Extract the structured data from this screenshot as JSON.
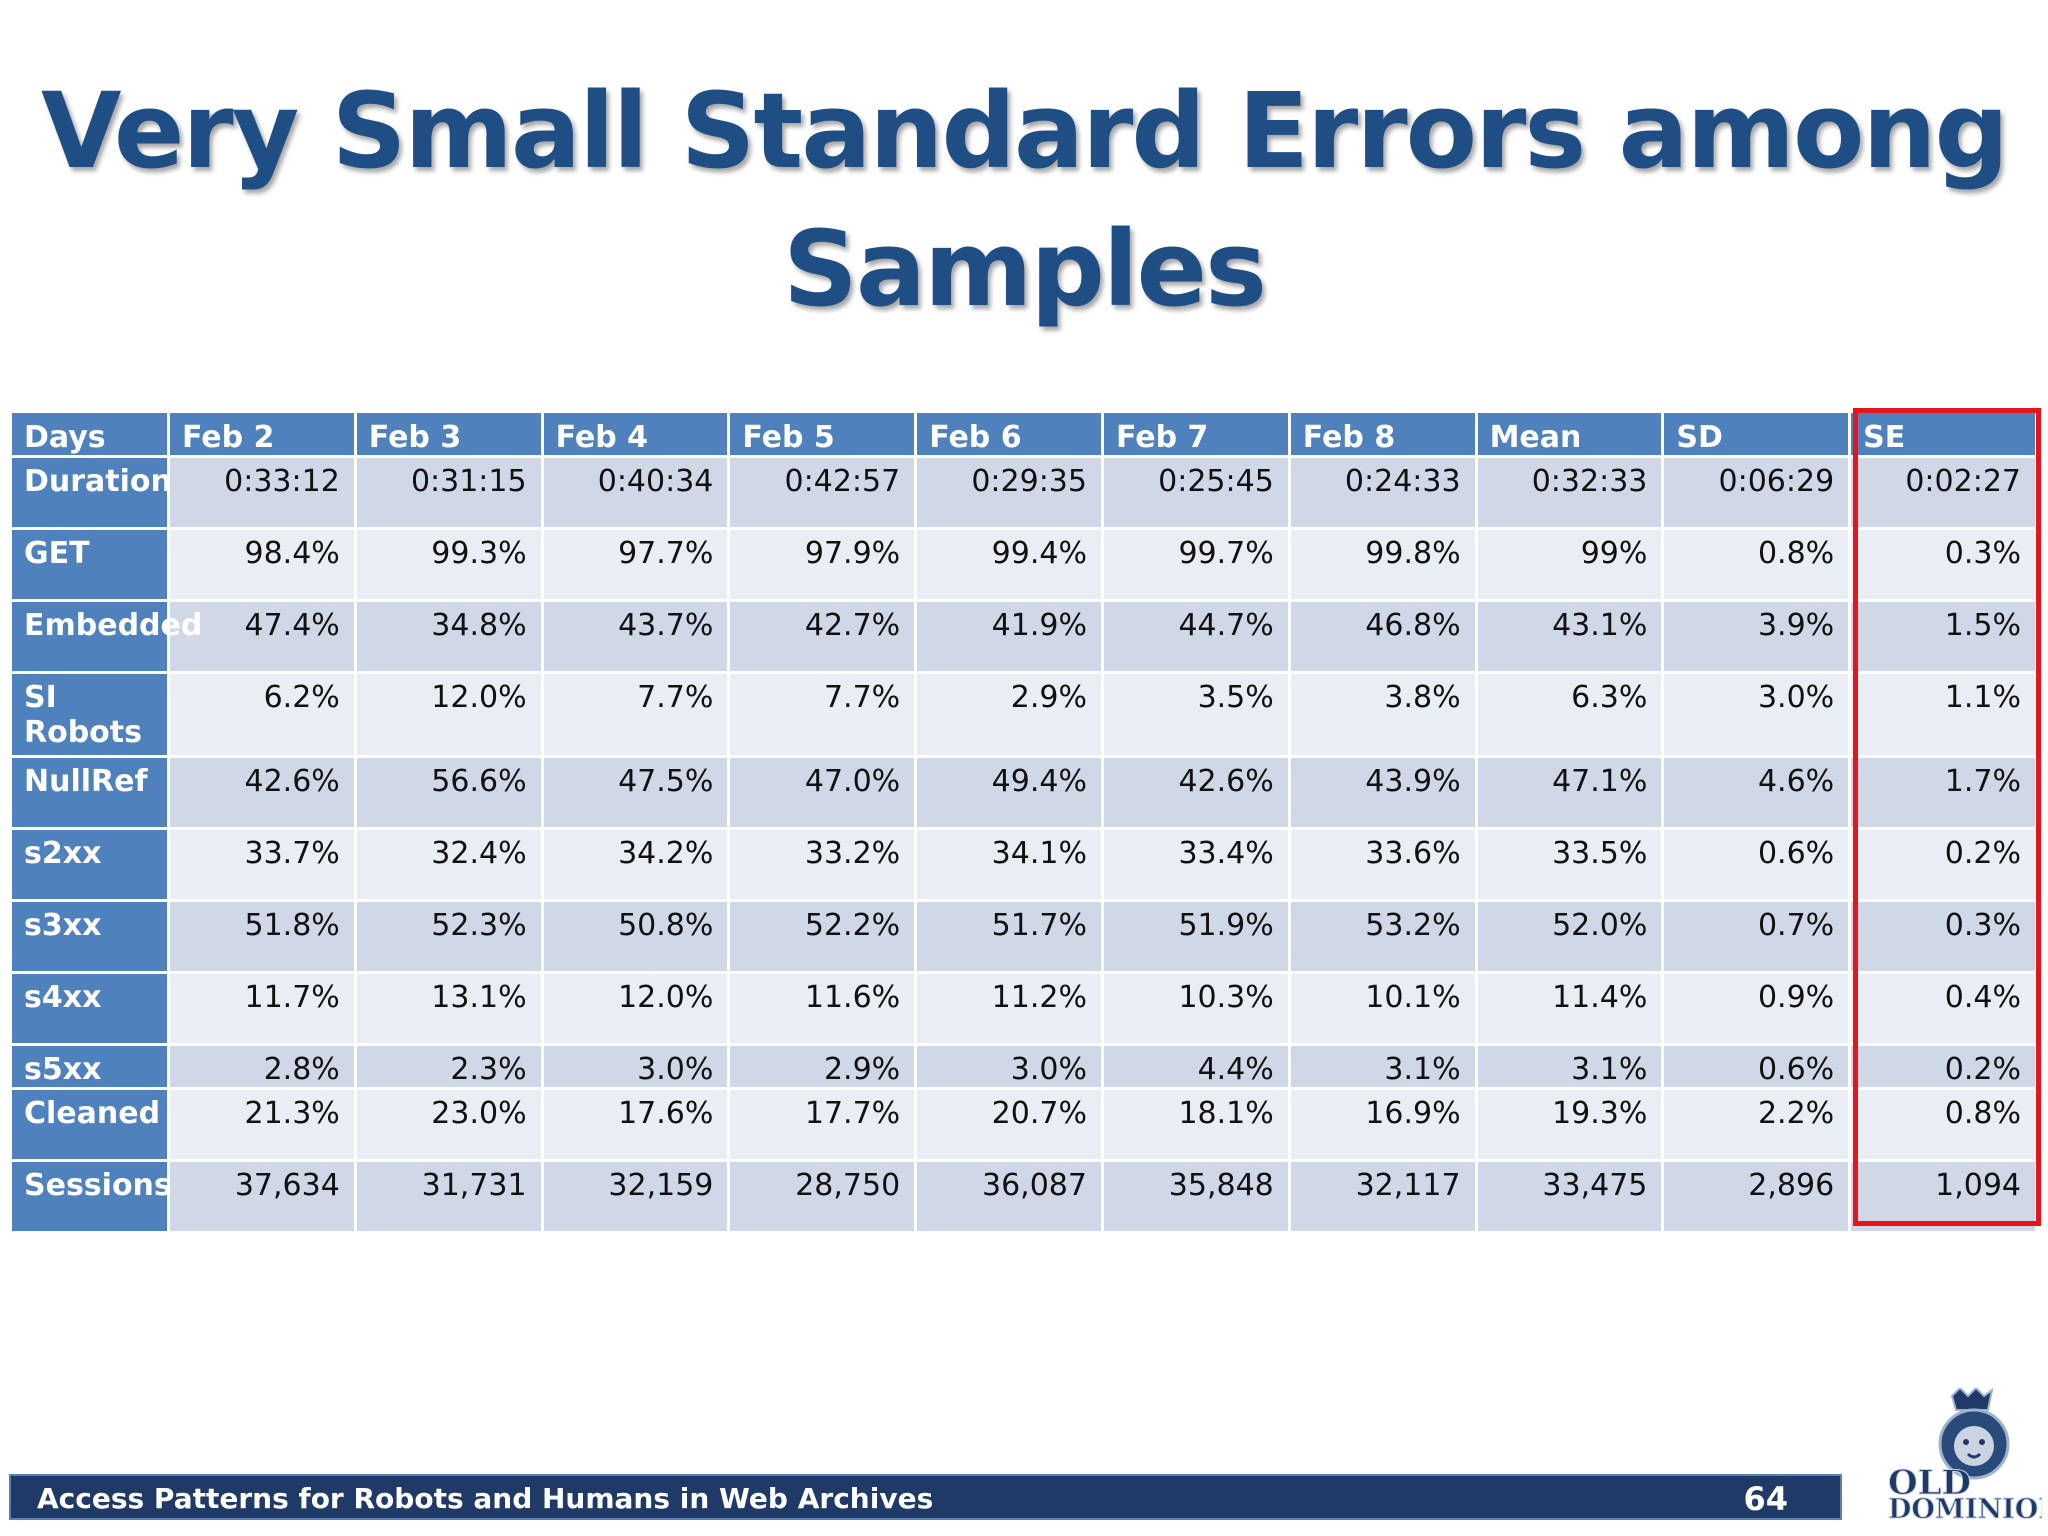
{
  "slide": {
    "title_line1": "Very Small Standard Errors among",
    "title_line2": "Samples",
    "footer_text": "Access Patterns for Robots and Humans in Web Archives",
    "page_number": "64",
    "logo_text": "OLD DOMINION UNIVERSITY"
  },
  "table": {
    "headers": [
      "Days",
      "Feb 2",
      "Feb 3",
      "Feb 4",
      "Feb 5",
      "Feb 6",
      "Feb 7",
      "Feb 8",
      "Mean",
      "SD",
      "SE"
    ],
    "rows": [
      {
        "label": "Duration",
        "values": [
          "0:33:12",
          "0:31:15",
          "0:40:34",
          "0:42:57",
          "0:29:35",
          "0:25:45",
          "0:24:33",
          "0:32:33",
          "0:06:29",
          "0:02:27"
        ]
      },
      {
        "label": "GET",
        "values": [
          "98.4%",
          "99.3%",
          "97.7%",
          "97.9%",
          "99.4%",
          "99.7%",
          "99.8%",
          "99%",
          "0.8%",
          "0.3%"
        ]
      },
      {
        "label": "Embedded",
        "values": [
          "47.4%",
          "34.8%",
          "43.7%",
          "42.7%",
          "41.9%",
          "44.7%",
          "46.8%",
          "43.1%",
          "3.9%",
          "1.5%"
        ]
      },
      {
        "label": "SI Robots",
        "values": [
          "6.2%",
          "12.0%",
          "7.7%",
          "7.7%",
          "2.9%",
          "3.5%",
          "3.8%",
          "6.3%",
          "3.0%",
          "1.1%"
        ]
      },
      {
        "label": "NullRef",
        "values": [
          "42.6%",
          "56.6%",
          "47.5%",
          "47.0%",
          "49.4%",
          "42.6%",
          "43.9%",
          "47.1%",
          "4.6%",
          "1.7%"
        ]
      },
      {
        "label": "s2xx",
        "values": [
          "33.7%",
          "32.4%",
          "34.2%",
          "33.2%",
          "34.1%",
          "33.4%",
          "33.6%",
          "33.5%",
          "0.6%",
          "0.2%"
        ]
      },
      {
        "label": "s3xx",
        "values": [
          "51.8%",
          "52.3%",
          "50.8%",
          "52.2%",
          "51.7%",
          "51.9%",
          "53.2%",
          "52.0%",
          "0.7%",
          "0.3%"
        ]
      },
      {
        "label": "s4xx",
        "values": [
          "11.7%",
          "13.1%",
          "12.0%",
          "11.6%",
          "11.2%",
          "10.3%",
          "10.1%",
          "11.4%",
          "0.9%",
          "0.4%"
        ]
      },
      {
        "label": "s5xx",
        "values": [
          "2.8%",
          "2.3%",
          "3.0%",
          "2.9%",
          "3.0%",
          "4.4%",
          "3.1%",
          "3.1%",
          "0.6%",
          "0.2%"
        ]
      },
      {
        "label": "Cleaned",
        "values": [
          "21.3%",
          "23.0%",
          "17.6%",
          "17.7%",
          "20.7%",
          "18.1%",
          "16.9%",
          "19.3%",
          "2.2%",
          "0.8%"
        ]
      },
      {
        "label": "Sessions",
        "values": [
          "37,634",
          "31,731",
          "32,159",
          "28,750",
          "36,087",
          "35,848",
          "32,117",
          "33,475",
          "2,896",
          "1,094"
        ]
      }
    ]
  },
  "colors": {
    "title": "#1f4e84",
    "header_fill": "#4f81bd",
    "row_odd": "#d0d8e8",
    "row_even": "#e9edf4",
    "highlight_box": "#e8141b",
    "footer_fill": "#1f3a66"
  }
}
